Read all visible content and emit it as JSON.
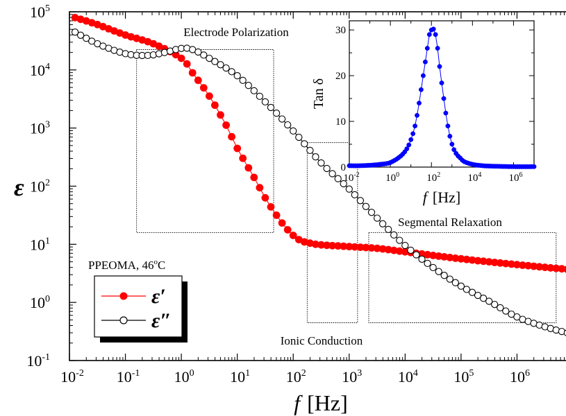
{
  "chart_data": {
    "main": {
      "type": "scatter",
      "xscale": "log",
      "yscale": "log",
      "xlim": [
        0.01,
        10000000
      ],
      "ylim": [
        0.1,
        100000
      ],
      "xlabel_symbol": "f",
      "xlabel_unit": "[Hz]",
      "ylabel": "ε",
      "grid": false,
      "x_ticks": [
        {
          "base": "10",
          "exp": "-2",
          "value": 0.01
        },
        {
          "base": "10",
          "exp": "-1",
          "value": 0.1
        },
        {
          "base": "10",
          "exp": "0",
          "value": 1
        },
        {
          "base": "10",
          "exp": "1",
          "value": 10
        },
        {
          "base": "10",
          "exp": "2",
          "value": 100
        },
        {
          "base": "10",
          "exp": "3",
          "value": 1000
        },
        {
          "base": "10",
          "exp": "4",
          "value": 10000
        },
        {
          "base": "10",
          "exp": "5",
          "value": 100000
        },
        {
          "base": "10",
          "exp": "6",
          "value": 1000000
        },
        {
          "base": "10",
          "exp": "7",
          "value": 10000000
        }
      ],
      "y_ticks": [
        {
          "base": "10",
          "exp": "-1",
          "value": 0.1
        },
        {
          "base": "10",
          "exp": "0",
          "value": 1
        },
        {
          "base": "10",
          "exp": "1",
          "value": 10
        },
        {
          "base": "10",
          "exp": "2",
          "value": 100
        },
        {
          "base": "10",
          "exp": "3",
          "value": 1000
        },
        {
          "base": "10",
          "exp": "4",
          "value": 10000
        },
        {
          "base": "10",
          "exp": "5",
          "value": 100000
        }
      ],
      "series": [
        {
          "name": "ε′",
          "color": "#ff0000",
          "marker": "filled-circle",
          "log_x": [
            -1.9,
            -1.5,
            -1.0,
            -0.5,
            0.0,
            0.2,
            0.5,
            0.8,
            1.0,
            1.3,
            1.5,
            1.7,
            1.9,
            2.1,
            2.3,
            2.5,
            3.0,
            3.5,
            4.0,
            5.0,
            6.0,
            7.0
          ],
          "log_y": [
            4.9,
            4.78,
            4.6,
            4.45,
            4.2,
            3.95,
            3.55,
            3.05,
            2.65,
            2.15,
            1.8,
            1.5,
            1.25,
            1.08,
            1.02,
            0.99,
            0.96,
            0.93,
            0.87,
            0.75,
            0.65,
            0.56
          ]
        },
        {
          "name": "ε″",
          "color": "#000000",
          "marker": "open-circle",
          "log_x": [
            -1.9,
            -1.5,
            -1.0,
            -0.6,
            -0.3,
            0.0,
            0.2,
            0.5,
            1.0,
            1.5,
            2.0,
            2.5,
            3.0,
            3.5,
            4.0,
            4.5,
            5.0,
            5.5,
            6.0,
            6.5,
            7.0
          ],
          "log_y": [
            4.65,
            4.45,
            4.28,
            4.25,
            4.3,
            4.37,
            4.35,
            4.2,
            3.9,
            3.45,
            2.95,
            2.4,
            1.95,
            1.45,
            0.98,
            0.6,
            0.28,
            0.02,
            -0.25,
            -0.42,
            -0.55
          ]
        }
      ],
      "legend": {
        "placement": "lower-left",
        "entries": [
          "ε′",
          "ε″"
        ]
      },
      "annotations": [
        {
          "id": "electrode",
          "text": "Electrode Polarization",
          "box_log_x": [
            -0.8,
            1.65
          ],
          "box_log_y": [
            1.2,
            4.35
          ]
        },
        {
          "id": "ionic",
          "text": "Ionic Conduction",
          "box_log_x": [
            2.25,
            3.15
          ],
          "box_log_y": [
            -0.35,
            2.75
          ]
        },
        {
          "id": "segmental",
          "text": "Segmental Relaxation",
          "box_log_x": [
            3.35,
            6.7
          ],
          "box_log_y": [
            -0.35,
            1.2
          ]
        }
      ],
      "sample_label": {
        "text": "PPEOMA, 46",
        "sup": "o",
        "suffix": "C"
      }
    },
    "inset": {
      "type": "scatter",
      "xscale": "log",
      "yscale": "linear",
      "xlim": [
        0.01,
        10000000
      ],
      "ylim": [
        0,
        32
      ],
      "ylabel": "Tan δ",
      "xlabel_symbol": "f",
      "xlabel_unit": "[Hz]",
      "x_ticks": [
        {
          "base": "10",
          "exp": "-2",
          "value": 0.01
        },
        {
          "base": "10",
          "exp": "0",
          "value": 1
        },
        {
          "base": "10",
          "exp": "2",
          "value": 100
        },
        {
          "base": "10",
          "exp": "4",
          "value": 10000
        },
        {
          "base": "10",
          "exp": "6",
          "value": 1000000
        }
      ],
      "y_ticks": [
        "0",
        "10",
        "20",
        "30"
      ],
      "series": [
        {
          "name": "tan δ",
          "color": "#0000ff",
          "marker": "filled-circle",
          "log_x": [
            -2.0,
            -1.5,
            -1.0,
            -0.5,
            0.0,
            0.5,
            0.8,
            1.0,
            1.2,
            1.4,
            1.6,
            1.8,
            1.9,
            2.0,
            2.1,
            2.2,
            2.3,
            2.4,
            2.6,
            2.8,
            3.0,
            3.2,
            3.4,
            3.6,
            4.0,
            4.5,
            5.0,
            6.0,
            7.0
          ],
          "y": [
            0.3,
            0.3,
            0.4,
            0.6,
            1.0,
            2.4,
            4.0,
            6.0,
            9.0,
            14.0,
            20.0,
            26.0,
            29.0,
            30.0,
            30.2,
            29.0,
            26.0,
            22.0,
            15.0,
            9.0,
            5.0,
            3.0,
            2.0,
            1.2,
            0.6,
            0.3,
            0.2,
            0.1,
            0.1
          ]
        }
      ]
    }
  }
}
